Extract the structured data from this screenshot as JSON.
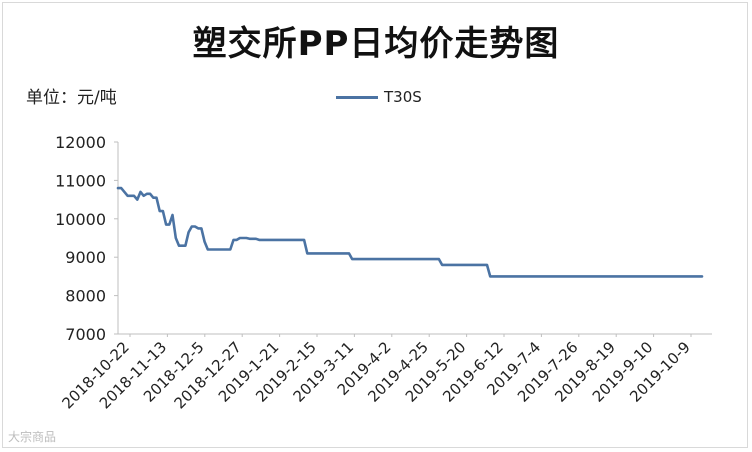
{
  "chart_data": {
    "type": "line",
    "title": "塑交所PP日均价走势图",
    "unit_label": "单位：元/吨",
    "ylim": [
      7000,
      12000
    ],
    "yticks": [
      7000,
      8000,
      9000,
      10000,
      11000,
      12000
    ],
    "grid": false,
    "legend": "top-center",
    "x_tick_labels": [
      "2018-10-22",
      "2018-11-13",
      "2018-12-5",
      "2018-12-27",
      "2019-1-21",
      "2019-2-15",
      "2019-3-11",
      "2019-4-2",
      "2019-4-25",
      "2019-5-20",
      "2019-6-12",
      "2019-7-4",
      "2019-7-26",
      "2019-8-19",
      "2019-9-10",
      "2019-10-9"
    ],
    "series": [
      {
        "name": "T30S",
        "color": "#4b73a3",
        "values": [
          10800,
          10800,
          10700,
          10600,
          10600,
          10600,
          10500,
          10700,
          10600,
          10650,
          10650,
          10550,
          10550,
          10200,
          10200,
          9850,
          9850,
          10100,
          9500,
          9300,
          9300,
          9300,
          9650,
          9800,
          9800,
          9750,
          9750,
          9400,
          9200,
          9200,
          9200,
          9200,
          9200,
          9200,
          9200,
          9200,
          9450,
          9450,
          9500,
          9500,
          9500,
          9480,
          9480,
          9480,
          9450,
          9450,
          9450,
          9450,
          9450,
          9450,
          9450,
          9450,
          9450,
          9450,
          9450,
          9450,
          9450,
          9450,
          9450,
          9100,
          9100,
          9100,
          9100,
          9100,
          9100,
          9100,
          9100,
          9100,
          9100,
          9100,
          9100,
          9100,
          9100,
          8950,
          8950,
          8950,
          8950,
          8950,
          8950,
          8950,
          8950,
          8950,
          8950,
          8950,
          8950,
          8950,
          8950,
          8950,
          8950,
          8950,
          8950,
          8950,
          8950,
          8950,
          8950,
          8950,
          8950,
          8950,
          8950,
          8950,
          8950,
          8800,
          8800,
          8800,
          8800,
          8800,
          8800,
          8800,
          8800,
          8800,
          8800,
          8800,
          8800,
          8800,
          8800,
          8800,
          8500,
          8500,
          8500,
          8500,
          8500,
          8500,
          8500,
          8500,
          8500,
          8500,
          8500,
          8500,
          8500,
          8500,
          8500,
          8500,
          8500,
          8500,
          8500,
          8500,
          8500,
          8500,
          8500,
          8500,
          8500,
          8500,
          8500,
          8500,
          8500,
          8500,
          8500,
          8500,
          8500,
          8500,
          8500,
          8500,
          8500,
          8500,
          8500,
          8500,
          8500,
          8500,
          8500,
          8500,
          8500,
          8500,
          8500,
          8500,
          8500,
          8500,
          8500,
          8500,
          8500,
          8500,
          8500,
          8500,
          8500,
          8500,
          8500,
          8500,
          8500,
          8500,
          8500,
          8500,
          8500,
          8500,
          8500
        ]
      }
    ]
  },
  "watermark": "大宗商品"
}
